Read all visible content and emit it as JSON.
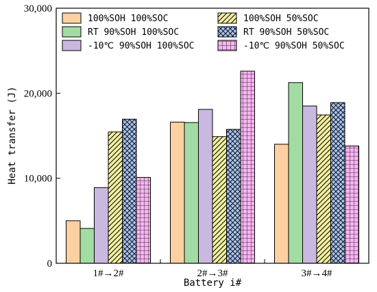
{
  "chart_data": {
    "type": "bar",
    "title": "",
    "xlabel": "Battery i#",
    "ylabel": "Heat transfer (J)",
    "categories": [
      "1#→2#",
      "2#→3#",
      "3#→4#"
    ],
    "ylim": [
      0,
      30000
    ],
    "yticks": [
      0,
      10000,
      20000,
      30000
    ],
    "ytick_labels": [
      "0",
      "10,000",
      "20,000",
      "30,000"
    ],
    "legend_position": "top",
    "legend_columns": 2,
    "grid": false,
    "series": [
      {
        "name": "100%SOH 100%SOC",
        "values": [
          5000,
          16600,
          14000
        ],
        "color": "#fdd0a2",
        "pattern": "solid"
      },
      {
        "name": "RT 90%SOH 100%SOC",
        "values": [
          4100,
          16550,
          21250
        ],
        "color": "#a3dca3",
        "pattern": "solid"
      },
      {
        "name": "-10℃ 90%SOH 100%SOC",
        "values": [
          8900,
          18100,
          18500
        ],
        "color": "#c9b8df",
        "pattern": "solid"
      },
      {
        "name": "100%SOH 50%SOC",
        "values": [
          15450,
          14900,
          17450
        ],
        "color": "#f2f0a0",
        "pattern": "diagonal"
      },
      {
        "name": "RT 90%SOH 50%SOC",
        "values": [
          16950,
          15750,
          18900
        ],
        "color": "#a8c2f0",
        "pattern": "crosshatch"
      },
      {
        "name": "-10℃ 90%SOH 50%SOC",
        "values": [
          10100,
          22600,
          13800
        ],
        "color": "#f6b4f0",
        "pattern": "grid"
      }
    ]
  }
}
